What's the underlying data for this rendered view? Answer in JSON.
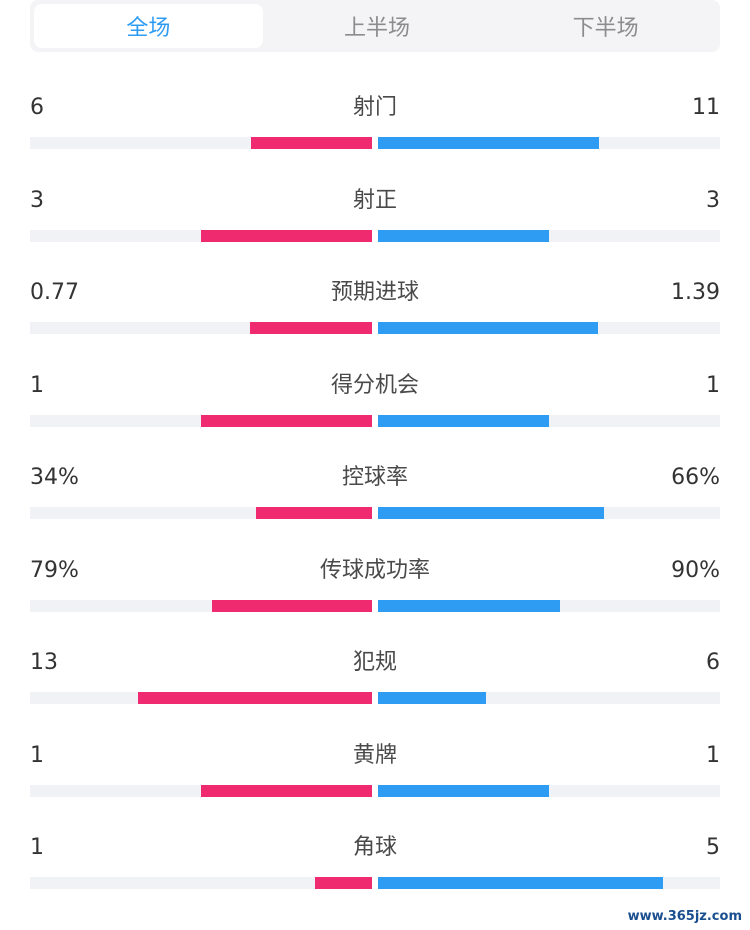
{
  "tabs": {
    "items": [
      {
        "label": "全场",
        "active": true
      },
      {
        "label": "上半场",
        "active": false
      },
      {
        "label": "下半场",
        "active": false
      }
    ]
  },
  "colors": {
    "home_bar": "#f02a6f",
    "away_bar": "#2f9cf4",
    "active_tab": "#2f9cf4"
  },
  "stats": [
    {
      "label": "射门",
      "left": "6",
      "right": "11",
      "left_ratio": 0.354,
      "right_ratio": 0.646
    },
    {
      "label": "射正",
      "left": "3",
      "right": "3",
      "left_ratio": 0.5,
      "right_ratio": 0.5
    },
    {
      "label": "预期进球",
      "left": "0.77",
      "right": "1.39",
      "left_ratio": 0.356,
      "right_ratio": 0.644
    },
    {
      "label": "得分机会",
      "left": "1",
      "right": "1",
      "left_ratio": 0.5,
      "right_ratio": 0.5
    },
    {
      "label": "控球率",
      "left": "34%",
      "right": "66%",
      "left_ratio": 0.34,
      "right_ratio": 0.66
    },
    {
      "label": "传球成功率",
      "left": "79%",
      "right": "90%",
      "left_ratio": 0.467,
      "right_ratio": 0.533
    },
    {
      "label": "犯规",
      "left": "13",
      "right": "6",
      "left_ratio": 0.684,
      "right_ratio": 0.316
    },
    {
      "label": "黄牌",
      "left": "1",
      "right": "1",
      "left_ratio": 0.5,
      "right_ratio": 0.5
    },
    {
      "label": "角球",
      "left": "1",
      "right": "5",
      "left_ratio": 0.167,
      "right_ratio": 0.833
    }
  ],
  "watermark": "www.365jz.com"
}
